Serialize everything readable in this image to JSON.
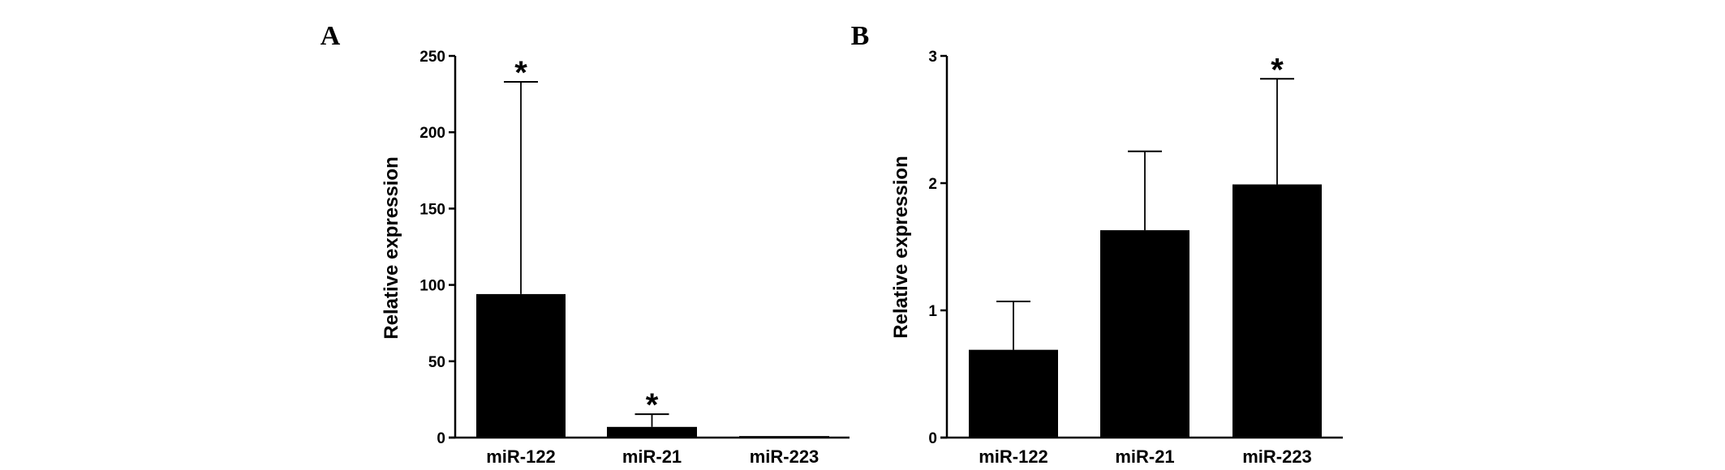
{
  "chart_data": [
    {
      "type": "bar",
      "panel_label": "A",
      "categories": [
        "miR-122",
        "miR-21",
        "miR-223"
      ],
      "values": [
        94,
        7,
        1
      ],
      "error_upper": [
        233,
        15.3,
        1
      ],
      "significance": [
        "*",
        "*",
        ""
      ],
      "ylabel": "Relative expression",
      "xlabel": "",
      "ylim": [
        0,
        250
      ],
      "yticks": [
        0,
        50,
        100,
        150,
        200,
        250
      ],
      "grid": false,
      "bar_color": "#000000"
    },
    {
      "type": "bar",
      "panel_label": "B",
      "categories": [
        "miR-122",
        "miR-21",
        "miR-223"
      ],
      "values": [
        0.69,
        1.63,
        1.99
      ],
      "error_upper": [
        1.07,
        2.25,
        2.82
      ],
      "significance": [
        "",
        "",
        "*"
      ],
      "ylabel": "Relative expression",
      "xlabel": "",
      "ylim": [
        0,
        3
      ],
      "yticks": [
        0,
        1,
        2,
        3
      ],
      "grid": false,
      "bar_color": "#000000"
    }
  ]
}
